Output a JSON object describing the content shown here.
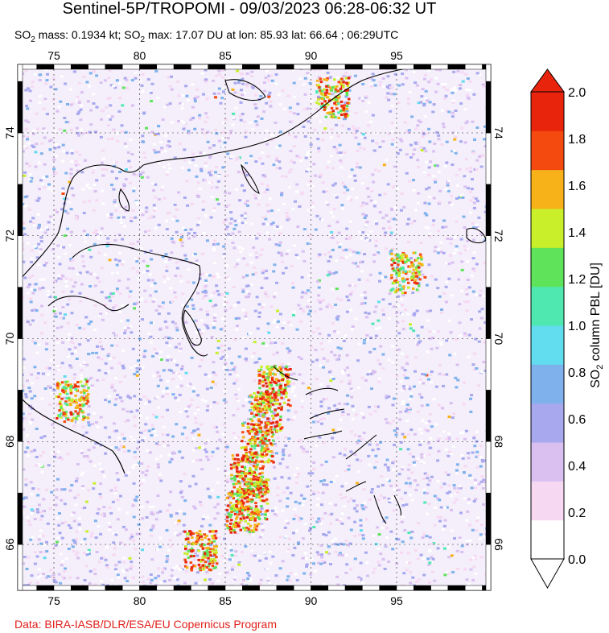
{
  "header": {
    "title": "Sentinel-5P/TROPOMI - 09/03/2023 06:28-06:32 UT",
    "subtitle_so2_1": "SO",
    "subtitle_sub_1": "2",
    "subtitle_mass": " mass: 0.1934 kt; SO",
    "subtitle_sub_2": "2",
    "subtitle_max": " max: 17.07 DU at lon: 85.93 lat: 66.64 ; 06:29UTC"
  },
  "footer": {
    "credit": "Data: BIRA-IASB/DLR/ESA/EU Copernicus Program"
  },
  "colorbar": {
    "label_prefix": "SO",
    "label_sub": "2",
    "label_suffix": " column PBL [DU]",
    "ticks": [
      "0.0",
      "0.2",
      "0.4",
      "0.6",
      "0.8",
      "1.0",
      "1.2",
      "1.4",
      "1.6",
      "1.8",
      "2.0"
    ],
    "colors": [
      "#ffffff",
      "#f7d8f3",
      "#d9c0f0",
      "#a8a8ee",
      "#7fb2ec",
      "#62dcef",
      "#4fe8b0",
      "#5ee35a",
      "#c8ef2a",
      "#f7b21a",
      "#f44a10",
      "#e8240c"
    ]
  },
  "chart_data": {
    "type": "heatmap",
    "title": "Sentinel-5P/TROPOMI - 09/03/2023 06:28-06:32 UT",
    "xlabel": "",
    "ylabel": "",
    "xlim": [
      72.7,
      100.5
    ],
    "ylim": [
      65.1,
      75.5
    ],
    "x_ticks": [
      "75",
      "80",
      "85",
      "90",
      "95"
    ],
    "y_ticks": [
      "66",
      "68",
      "70",
      "72",
      "74"
    ],
    "x_tick_values": [
      75,
      80,
      85,
      90,
      95
    ],
    "y_tick_values": [
      66,
      68,
      70,
      72,
      74
    ],
    "value_range": [
      0.0,
      2.0
    ],
    "units": "DU",
    "max": {
      "value": 17.07,
      "lon": 85.93,
      "lat": 66.64
    },
    "hotspots": [
      {
        "lon": 87.8,
        "lat": 69.1,
        "value": 2.0
      },
      {
        "lon": 87.3,
        "lat": 68.6,
        "value": 2.0
      },
      {
        "lon": 86.8,
        "lat": 68.0,
        "value": 1.9
      },
      {
        "lon": 86.2,
        "lat": 67.4,
        "value": 2.0
      },
      {
        "lon": 85.93,
        "lat": 66.64,
        "value": 2.0
      },
      {
        "lon": 86.5,
        "lat": 66.9,
        "value": 1.9
      },
      {
        "lon": 83.5,
        "lat": 65.9,
        "value": 2.0
      },
      {
        "lon": 76.0,
        "lat": 68.8,
        "value": 1.8
      },
      {
        "lon": 95.5,
        "lat": 71.3,
        "value": 1.8
      },
      {
        "lon": 91.2,
        "lat": 74.7,
        "value": 1.9
      }
    ],
    "grid": true
  }
}
